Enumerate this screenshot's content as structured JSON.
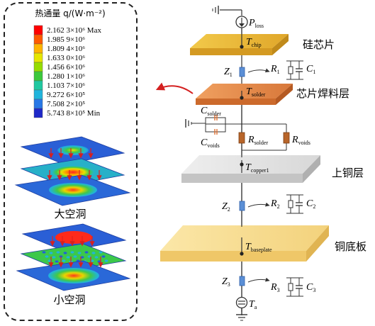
{
  "legend": {
    "title": "热通量 q/(W·m⁻²)",
    "entries": [
      {
        "value": "2.162 3×10⁶ Max",
        "color": "#ff0000"
      },
      {
        "value": "1.985 9×10⁶",
        "color": "#ff5a00"
      },
      {
        "value": "1.809 4×10⁶",
        "color": "#ffb400"
      },
      {
        "value": "1.633 0×10⁶",
        "color": "#e6e600"
      },
      {
        "value": "1.456 6×10⁶",
        "color": "#96dc00"
      },
      {
        "value": "1.280 1×10⁶",
        "color": "#3cc83c"
      },
      {
        "value": "1.103 7×10⁶",
        "color": "#20c8a0"
      },
      {
        "value": "9.272 6×10⁵",
        "color": "#20b4dc"
      },
      {
        "value": "7.508 2×10⁵",
        "color": "#2878e6"
      },
      {
        "value": "5.743 8×10⁵ Min",
        "color": "#1e28c8"
      }
    ]
  },
  "cases": {
    "large": "大空洞",
    "small": "小空洞"
  },
  "layers": {
    "chip": "硅芯片",
    "solder": "芯片焊料层",
    "copper": "上铜层",
    "baseplate": "铜底板"
  },
  "nodes": {
    "ploss": {
      "main": "P",
      "sub": "loss"
    },
    "tchip": {
      "main": "T",
      "sub": "chip"
    },
    "tsolder": {
      "main": "T",
      "sub": "solder"
    },
    "tcopper": {
      "main": "T",
      "sub": "copper1"
    },
    "tbase": {
      "main": "T",
      "sub": "baseplate"
    },
    "ta": {
      "main": "T",
      "sub": "a"
    }
  },
  "impedances": {
    "z1": {
      "main": "Z",
      "sub": "1"
    },
    "z2": {
      "main": "Z",
      "sub": "2"
    },
    "z3": {
      "main": "Z",
      "sub": "3"
    }
  },
  "rc": {
    "r1": {
      "main": "R",
      "sub": "1"
    },
    "c1": {
      "main": "C",
      "sub": "1"
    },
    "r2": {
      "main": "R",
      "sub": "2"
    },
    "c2": {
      "main": "C",
      "sub": "2"
    },
    "r3": {
      "main": "R",
      "sub": "3"
    },
    "c3": {
      "main": "C",
      "sub": "3"
    }
  },
  "solder_network": {
    "csolder": {
      "main": "C",
      "sub": "solder"
    },
    "cvoids": {
      "main": "C",
      "sub": "voids"
    },
    "rsolder": {
      "main": "R",
      "sub": "solder"
    },
    "rvoids": {
      "main": "R",
      "sub": "voids"
    }
  }
}
